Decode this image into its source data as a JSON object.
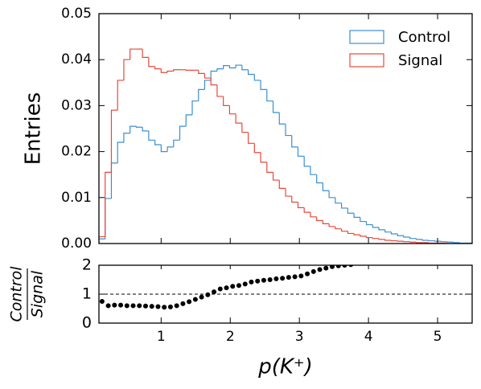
{
  "chart_data": [
    {
      "type": "histogram",
      "ylabel": "Entries",
      "bins": [
        0.1,
        0.19,
        0.28,
        0.37,
        0.46,
        0.55,
        0.64,
        0.73,
        0.82,
        0.91,
        1.0,
        1.09,
        1.18,
        1.27,
        1.36,
        1.45,
        1.54,
        1.63,
        1.72,
        1.81,
        1.9,
        1.99,
        2.08,
        2.17,
        2.26,
        2.35,
        2.44,
        2.53,
        2.62,
        2.71,
        2.8,
        2.89,
        2.98,
        3.07,
        3.16,
        3.25,
        3.34,
        3.43,
        3.52,
        3.61,
        3.7,
        3.79,
        3.88,
        3.97,
        4.06,
        4.15,
        4.24,
        4.33,
        4.42,
        4.51,
        4.6,
        4.69,
        4.78,
        4.87,
        4.96,
        5.05,
        5.14,
        5.23,
        5.32,
        5.41,
        5.5
      ],
      "series": [
        {
          "name": "Control",
          "color": "#3a8fcf",
          "values": [
            0.001,
            0.0098,
            0.0175,
            0.022,
            0.024,
            0.0255,
            0.0253,
            0.0245,
            0.0225,
            0.0215,
            0.02,
            0.021,
            0.0225,
            0.0255,
            0.028,
            0.031,
            0.0335,
            0.0355,
            0.0375,
            0.038,
            0.0387,
            0.0382,
            0.0388,
            0.0378,
            0.0368,
            0.0355,
            0.0335,
            0.031,
            0.0285,
            0.026,
            0.0235,
            0.021,
            0.019,
            0.0168,
            0.015,
            0.0132,
            0.0115,
            0.01,
            0.0088,
            0.0077,
            0.0066,
            0.0057,
            0.0048,
            0.0041,
            0.0035,
            0.003,
            0.0025,
            0.0021,
            0.0017,
            0.0014,
            0.0011,
            0.0009,
            0.0007,
            0.0006,
            0.0005,
            0.0004,
            0.0003,
            0.0002,
            0.0001,
            0.0001
          ]
        },
        {
          "name": "Signal",
          "color": "#e8493a",
          "values": [
            0.0015,
            0.0155,
            0.029,
            0.0355,
            0.04,
            0.0423,
            0.0423,
            0.0405,
            0.0385,
            0.038,
            0.0372,
            0.0375,
            0.0378,
            0.0378,
            0.0377,
            0.0377,
            0.037,
            0.036,
            0.0345,
            0.032,
            0.03,
            0.0282,
            0.0262,
            0.0242,
            0.0218,
            0.0198,
            0.0177,
            0.0155,
            0.0138,
            0.012,
            0.0103,
            0.009,
            0.0078,
            0.0068,
            0.0058,
            0.005,
            0.0043,
            0.0037,
            0.0032,
            0.0027,
            0.0022,
            0.0019,
            0.0016,
            0.0013,
            0.0011,
            0.0009,
            0.0007,
            0.0006,
            0.0005,
            0.0004,
            0.0003,
            0.0002,
            0.0002,
            0.0001,
            0.0001,
            0.0001,
            0,
            0,
            0,
            0
          ]
        }
      ],
      "xlim": [
        0.1,
        5.5
      ],
      "ylim": [
        0,
        0.05
      ],
      "yticks": [
        {
          "value": 0,
          "label": "0.00"
        },
        {
          "value": 0.01,
          "label": "0.01"
        },
        {
          "value": 0.02,
          "label": "0.02"
        },
        {
          "value": 0.03,
          "label": "0.03"
        },
        {
          "value": 0.04,
          "label": "0.04"
        },
        {
          "value": 0.05,
          "label": "0.05"
        }
      ],
      "legend": "upper right"
    },
    {
      "type": "scatter",
      "xlabel": "p(K⁺)",
      "ylabel": {
        "numerator": "Control",
        "denominator": "Signal"
      },
      "x": [
        0.145,
        0.235,
        0.325,
        0.415,
        0.505,
        0.595,
        0.685,
        0.775,
        0.865,
        0.955,
        1.045,
        1.135,
        1.225,
        1.315,
        1.405,
        1.495,
        1.585,
        1.675,
        1.765,
        1.855,
        1.945,
        2.035,
        2.125,
        2.215,
        2.305,
        2.395,
        2.485,
        2.575,
        2.665,
        2.755,
        2.845,
        2.935,
        3.025,
        3.115,
        3.205,
        3.295,
        3.385,
        3.475,
        3.565,
        3.655,
        3.745
      ],
      "values": [
        0.75,
        0.6,
        0.62,
        0.62,
        0.6,
        0.6,
        0.6,
        0.59,
        0.58,
        0.57,
        0.55,
        0.56,
        0.6,
        0.67,
        0.74,
        0.82,
        0.9,
        0.98,
        1.08,
        1.18,
        1.22,
        1.27,
        1.3,
        1.35,
        1.42,
        1.45,
        1.48,
        1.5,
        1.53,
        1.55,
        1.58,
        1.6,
        1.63,
        1.7,
        1.78,
        1.85,
        1.9,
        1.95,
        1.98,
        2.0,
        2.02
      ],
      "color": "#000000",
      "reference_line": 1,
      "xlim": [
        0.1,
        5.5
      ],
      "xticks": [
        1,
        2,
        3,
        4,
        5
      ],
      "ylim": [
        0,
        2
      ],
      "yticks": [
        0,
        1,
        2
      ]
    }
  ]
}
